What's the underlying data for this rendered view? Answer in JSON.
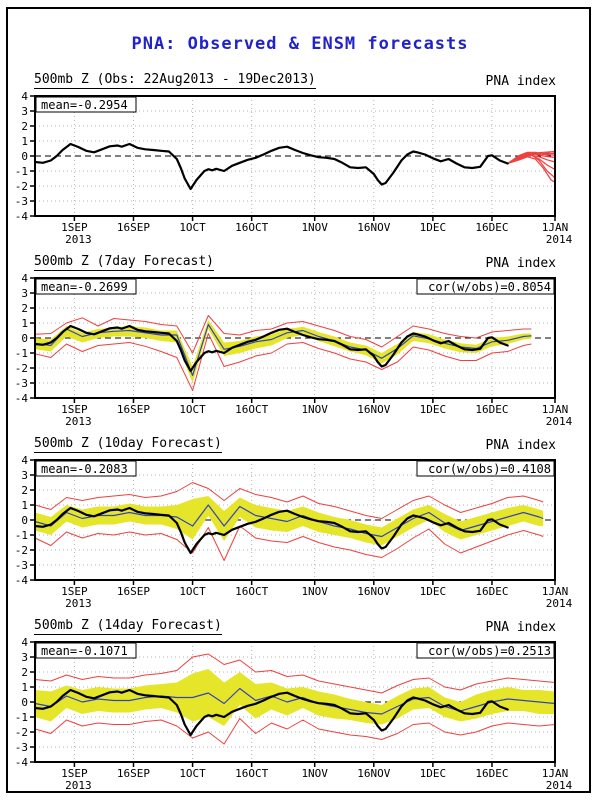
{
  "title": {
    "text": "PNA: Observed & ENSM forecasts",
    "color": "#2222cc"
  },
  "colors": {
    "observed": "#000000",
    "ensemble_mean": "#3344bb",
    "spread_band": "#e5e52a",
    "envelope": "#ee4040",
    "members": "#ee4040",
    "grid": "#b4b4b4",
    "frame": "#000000"
  },
  "axes": {
    "xlim": [
      0,
      132
    ],
    "ylim": [
      -4,
      4
    ],
    "grid": true,
    "y_ticks": [
      4,
      3,
      2,
      1,
      0,
      -1,
      -2,
      -3,
      -4
    ],
    "x_ticks": [
      {
        "label": "1SEP",
        "day": 10
      },
      {
        "label": "16SEP",
        "day": 25
      },
      {
        "label": "1OCT",
        "day": 40
      },
      {
        "label": "16OCT",
        "day": 55
      },
      {
        "label": "1NOV",
        "day": 71
      },
      {
        "label": "16NOV",
        "day": 86
      },
      {
        "label": "1DEC",
        "day": 101
      },
      {
        "label": "16DEC",
        "day": 116
      },
      {
        "label": "1JAN",
        "day": 132
      }
    ],
    "year_labels": [
      {
        "label": "2013",
        "day": 10
      },
      {
        "label": "2014",
        "day": 132
      }
    ]
  },
  "observed_points": [
    [
      0,
      -0.4
    ],
    [
      2,
      -0.45
    ],
    [
      4,
      -0.3
    ],
    [
      5.5,
      0
    ],
    [
      7,
      0.4
    ],
    [
      9,
      0.8
    ],
    [
      11,
      0.6
    ],
    [
      13,
      0.35
    ],
    [
      15,
      0.25
    ],
    [
      17,
      0.45
    ],
    [
      19,
      0.65
    ],
    [
      21,
      0.7
    ],
    [
      22,
      0.62
    ],
    [
      24,
      0.8
    ],
    [
      26,
      0.55
    ],
    [
      28,
      0.45
    ],
    [
      30,
      0.4
    ],
    [
      32,
      0.35
    ],
    [
      34,
      0.3
    ],
    [
      36,
      -0.2
    ],
    [
      37,
      -0.8
    ],
    [
      38,
      -1.5
    ],
    [
      39.5,
      -2.2
    ],
    [
      41,
      -1.6
    ],
    [
      43,
      -1.0
    ],
    [
      44,
      -0.88
    ],
    [
      45,
      -0.95
    ],
    [
      46,
      -0.85
    ],
    [
      48,
      -1.0
    ],
    [
      50,
      -0.65
    ],
    [
      52,
      -0.45
    ],
    [
      54,
      -0.25
    ],
    [
      56,
      -0.12
    ],
    [
      58,
      0.1
    ],
    [
      60,
      0.35
    ],
    [
      62,
      0.55
    ],
    [
      64,
      0.62
    ],
    [
      66,
      0.4
    ],
    [
      68,
      0.2
    ],
    [
      70,
      0.05
    ],
    [
      72,
      -0.08
    ],
    [
      74,
      -0.12
    ],
    [
      76,
      -0.2
    ],
    [
      78,
      -0.45
    ],
    [
      80,
      -0.75
    ],
    [
      82,
      -0.8
    ],
    [
      84,
      -0.75
    ],
    [
      86,
      -1.2
    ],
    [
      87,
      -1.6
    ],
    [
      88,
      -1.9
    ],
    [
      89,
      -1.8
    ],
    [
      91,
      -1.1
    ],
    [
      93,
      -0.3
    ],
    [
      94.5,
      0.1
    ],
    [
      96,
      0.3
    ],
    [
      97,
      0.25
    ],
    [
      99,
      0.1
    ],
    [
      101,
      -0.15
    ],
    [
      103,
      -0.35
    ],
    [
      105,
      -0.2
    ],
    [
      107,
      -0.5
    ],
    [
      109,
      -0.75
    ],
    [
      111,
      -0.8
    ],
    [
      113,
      -0.72
    ],
    [
      115,
      0.0
    ],
    [
      116,
      0.05
    ],
    [
      118,
      -0.3
    ],
    [
      120,
      -0.5
    ]
  ],
  "chart_data": [
    {
      "type": "line",
      "title": "500mb Z (Obs: 22Aug2013 - 19Dec2013)",
      "right_title": "PNA index",
      "mean_label": "mean=-0.2954",
      "cor_label": null,
      "series": {
        "observed": "observed_points",
        "forecast_members": [
          [
            [
              120,
              -0.5
            ],
            [
              123,
              -0.05
            ],
            [
              125,
              0.1
            ],
            [
              127,
              0.2
            ],
            [
              129,
              0.25
            ],
            [
              132,
              0.3
            ]
          ],
          [
            [
              120,
              -0.5
            ],
            [
              123,
              -0.1
            ],
            [
              125,
              0.15
            ],
            [
              127,
              0.1
            ],
            [
              130,
              0.2
            ],
            [
              132,
              0.15
            ]
          ],
          [
            [
              120,
              -0.5
            ],
            [
              123,
              0.0
            ],
            [
              125,
              0.2
            ],
            [
              128,
              0.15
            ],
            [
              132,
              0.05
            ]
          ],
          [
            [
              120,
              -0.5
            ],
            [
              123,
              -0.15
            ],
            [
              125,
              0.05
            ],
            [
              127,
              0.15
            ],
            [
              129,
              0.0
            ],
            [
              132,
              -0.1
            ]
          ],
          [
            [
              120,
              -0.5
            ],
            [
              123,
              -0.1
            ],
            [
              125,
              0.1
            ],
            [
              128,
              -0.05
            ],
            [
              130,
              -0.25
            ],
            [
              132,
              -0.4
            ]
          ],
          [
            [
              120,
              -0.5
            ],
            [
              123,
              -0.2
            ],
            [
              126,
              0.05
            ],
            [
              128,
              -0.2
            ],
            [
              130,
              -0.6
            ],
            [
              132,
              -0.9
            ]
          ],
          [
            [
              120,
              -0.5
            ],
            [
              123,
              -0.1
            ],
            [
              126,
              0.1
            ],
            [
              128,
              -0.3
            ],
            [
              130,
              -1.0
            ],
            [
              132,
              -1.45
            ]
          ],
          [
            [
              120,
              -0.5
            ],
            [
              123,
              -0.25
            ],
            [
              125,
              -0.05
            ],
            [
              127,
              -0.2
            ],
            [
              129,
              -0.8
            ],
            [
              131,
              -1.6
            ],
            [
              132,
              -1.75
            ]
          ],
          [
            [
              120,
              -0.5
            ],
            [
              123,
              0.05
            ],
            [
              125,
              0.25
            ],
            [
              127,
              0.25
            ],
            [
              129,
              0.1
            ],
            [
              132,
              0.2
            ]
          ]
        ]
      }
    },
    {
      "type": "line",
      "title": "500mb Z (7day Forecast)",
      "right_title": "PNA index",
      "mean_label": "mean=-0.2699",
      "cor_label": "cor(w/obs)=0.8054",
      "series": {
        "observed": "observed_points",
        "days": [
          0,
          4,
          8,
          12,
          16,
          20,
          24,
          28,
          32,
          36,
          40,
          44,
          48,
          52,
          56,
          60,
          64,
          68,
          72,
          76,
          80,
          84,
          88,
          92,
          96,
          100,
          104,
          108,
          112,
          116,
          120,
          124,
          126
        ],
        "ensemble_mean": [
          -0.35,
          -0.5,
          0.6,
          0.1,
          0.35,
          0.45,
          0.5,
          0.35,
          0.2,
          0.2,
          -2.5,
          0.9,
          -0.75,
          -0.55,
          -0.25,
          -0.1,
          0.35,
          0.5,
          0.1,
          -0.2,
          -0.6,
          -0.8,
          -1.35,
          -0.7,
          0.15,
          -0.05,
          -0.35,
          -0.6,
          -0.7,
          -0.25,
          -0.15,
          0.1,
          0.15
        ],
        "band_upper": [
          0.0,
          -0.1,
          0.8,
          0.35,
          0.6,
          0.7,
          0.8,
          0.7,
          0.5,
          0.5,
          -1.9,
          1.2,
          -0.3,
          -0.2,
          0.1,
          0.25,
          0.6,
          0.75,
          0.4,
          0.1,
          -0.3,
          -0.5,
          -1.0,
          -0.4,
          0.4,
          0.25,
          -0.1,
          -0.35,
          -0.45,
          0.0,
          0.1,
          0.3,
          0.3
        ],
        "band_lower": [
          -0.75,
          -0.9,
          0.1,
          -0.3,
          0.0,
          0.1,
          0.1,
          0.0,
          -0.2,
          -0.3,
          -3.0,
          0.6,
          -1.2,
          -1.0,
          -0.7,
          -0.5,
          0.0,
          0.2,
          -0.2,
          -0.55,
          -0.9,
          -1.15,
          -1.7,
          -1.1,
          -0.2,
          -0.35,
          -0.7,
          -0.95,
          -1.0,
          -0.55,
          -0.4,
          -0.1,
          -0.05
        ],
        "env_upper": [
          0.25,
          0.3,
          1.0,
          1.35,
          0.8,
          1.3,
          1.2,
          1.1,
          0.9,
          0.8,
          -1.0,
          1.5,
          0.3,
          0.2,
          0.5,
          0.6,
          1.0,
          1.1,
          0.8,
          0.5,
          0.1,
          -0.1,
          -0.6,
          0.1,
          0.8,
          0.6,
          0.3,
          0.1,
          0.0,
          0.4,
          0.5,
          0.6,
          0.6
        ],
        "env_lower": [
          -1.05,
          -1.3,
          -0.4,
          -0.9,
          -0.5,
          -0.4,
          -0.3,
          -0.55,
          -0.9,
          -1.3,
          -3.5,
          0.3,
          -1.9,
          -1.6,
          -1.2,
          -1.0,
          -0.4,
          -0.3,
          -0.7,
          -1.0,
          -1.4,
          -1.6,
          -2.1,
          -1.6,
          -0.6,
          -0.8,
          -1.2,
          -1.5,
          -1.5,
          -1.0,
          -0.9,
          -0.5,
          -0.4
        ]
      }
    },
    {
      "type": "line",
      "title": "500mb Z (10day Forecast)",
      "right_title": "PNA index",
      "mean_label": "mean=-0.2083",
      "cor_label": "cor(w/obs)=0.4108",
      "series": {
        "observed": "observed_points",
        "days": [
          0,
          4,
          8,
          12,
          16,
          20,
          24,
          28,
          32,
          36,
          40,
          44,
          48,
          52,
          56,
          60,
          64,
          68,
          72,
          76,
          80,
          84,
          88,
          92,
          96,
          100,
          104,
          108,
          112,
          116,
          120,
          124,
          128,
          129
        ],
        "ensemble_mean": [
          -0.1,
          -0.4,
          0.5,
          0.1,
          0.3,
          0.3,
          0.5,
          0.3,
          0.3,
          0.2,
          -0.4,
          1.0,
          -0.4,
          0.9,
          0.3,
          0.1,
          -0.1,
          0.3,
          -0.1,
          -0.4,
          -0.6,
          -0.9,
          -1.1,
          -0.5,
          0.1,
          0.5,
          -0.2,
          -0.7,
          -0.4,
          -0.1,
          0.2,
          0.5,
          0.2,
          0.1
        ],
        "band_upper": [
          0.5,
          0.2,
          1.0,
          0.7,
          0.9,
          0.9,
          1.1,
          0.9,
          0.9,
          1.0,
          1.4,
          1.6,
          0.6,
          1.5,
          1.0,
          0.8,
          0.6,
          0.9,
          0.5,
          0.2,
          0.0,
          -0.3,
          -0.5,
          0.1,
          0.7,
          1.0,
          0.4,
          -0.1,
          0.2,
          0.5,
          0.8,
          1.0,
          0.7,
          0.6
        ],
        "band_lower": [
          -0.7,
          -1.0,
          -0.1,
          -0.5,
          -0.3,
          -0.3,
          -0.1,
          -0.3,
          -0.3,
          -0.6,
          -1.3,
          0.3,
          -1.4,
          0.2,
          -0.5,
          -0.7,
          -0.8,
          -0.4,
          -0.8,
          -1.0,
          -1.2,
          -1.5,
          -1.7,
          -1.1,
          -0.5,
          0.0,
          -0.8,
          -1.3,
          -1.0,
          -0.7,
          -0.4,
          -0.1,
          -0.4,
          -0.4
        ],
        "env_upper": [
          1.0,
          0.7,
          1.5,
          1.3,
          1.5,
          1.6,
          1.7,
          1.5,
          1.6,
          1.9,
          2.5,
          2.1,
          1.3,
          2.1,
          1.7,
          1.5,
          1.2,
          1.6,
          1.1,
          0.9,
          0.6,
          0.3,
          0.1,
          0.7,
          1.3,
          1.6,
          1.0,
          0.5,
          0.8,
          1.1,
          1.5,
          1.6,
          1.3,
          1.2
        ],
        "env_lower": [
          -1.2,
          -1.7,
          -0.8,
          -1.2,
          -0.9,
          -1.0,
          -0.8,
          -1.0,
          -0.9,
          -1.3,
          -2.2,
          -0.5,
          -2.7,
          -0.4,
          -1.2,
          -1.4,
          -1.5,
          -1.1,
          -1.5,
          -1.8,
          -2.0,
          -2.3,
          -2.5,
          -1.9,
          -1.2,
          -0.6,
          -1.6,
          -2.2,
          -1.8,
          -1.4,
          -1.0,
          -0.7,
          -1.0,
          -1.1
        ]
      }
    },
    {
      "type": "line",
      "title": "500mb Z (14day Forecast)",
      "right_title": "PNA index",
      "mean_label": "mean=-0.1071",
      "cor_label": "cor(w/obs)=0.2513",
      "series": {
        "observed": "observed_points",
        "days": [
          0,
          4,
          8,
          12,
          16,
          20,
          24,
          28,
          32,
          36,
          40,
          44,
          48,
          52,
          56,
          60,
          64,
          68,
          72,
          76,
          80,
          84,
          88,
          92,
          96,
          100,
          104,
          108,
          112,
          116,
          120,
          124,
          128,
          132
        ],
        "ensemble_mean": [
          -0.1,
          -0.3,
          0.4,
          0.0,
          0.2,
          0.1,
          0.1,
          0.3,
          0.4,
          0.3,
          0.3,
          0.6,
          -0.1,
          0.9,
          0.1,
          0.4,
          0.0,
          0.3,
          -0.1,
          -0.3,
          -0.5,
          -0.7,
          -0.8,
          -0.3,
          0.2,
          0.3,
          -0.3,
          -0.6,
          -0.3,
          0.0,
          0.2,
          0.1,
          0.0,
          -0.1
        ],
        "band_upper": [
          0.8,
          0.7,
          1.1,
          0.8,
          1.0,
          0.9,
          0.9,
          1.1,
          1.2,
          1.3,
          1.9,
          2.2,
          1.3,
          2.0,
          1.2,
          1.3,
          0.9,
          1.0,
          0.7,
          0.5,
          0.2,
          0.0,
          -0.2,
          0.4,
          0.9,
          1.0,
          0.3,
          0.0,
          0.5,
          0.8,
          1.0,
          0.8,
          0.8,
          0.7
        ],
        "band_lower": [
          -1.0,
          -1.3,
          -0.4,
          -0.8,
          -0.6,
          -0.7,
          -0.7,
          -0.5,
          -0.4,
          -0.7,
          -1.3,
          -1.0,
          -1.6,
          -0.2,
          -1.1,
          -0.5,
          -0.9,
          -0.4,
          -0.9,
          -1.1,
          -1.2,
          -1.4,
          -1.5,
          -1.1,
          -0.5,
          -0.4,
          -1.0,
          -1.3,
          -1.1,
          -0.8,
          -0.6,
          -0.6,
          -0.8,
          -0.8
        ],
        "env_upper": [
          1.5,
          1.4,
          1.8,
          1.5,
          1.7,
          1.6,
          1.6,
          1.8,
          1.9,
          2.1,
          3.0,
          3.2,
          2.5,
          2.8,
          2.0,
          2.1,
          1.7,
          1.8,
          1.4,
          1.2,
          1.0,
          0.8,
          0.6,
          1.1,
          1.5,
          1.6,
          1.0,
          0.8,
          1.2,
          1.4,
          1.6,
          1.5,
          1.4,
          1.3
        ],
        "env_lower": [
          -1.8,
          -2.1,
          -1.2,
          -1.6,
          -1.4,
          -1.5,
          -1.5,
          -1.3,
          -1.2,
          -1.6,
          -2.4,
          -2.0,
          -2.8,
          -1.1,
          -2.1,
          -1.4,
          -1.8,
          -1.2,
          -1.8,
          -2.0,
          -2.2,
          -2.3,
          -2.5,
          -2.1,
          -1.5,
          -1.4,
          -2.0,
          -2.2,
          -2.0,
          -1.6,
          -1.4,
          -1.5,
          -1.6,
          -1.5
        ]
      }
    }
  ]
}
